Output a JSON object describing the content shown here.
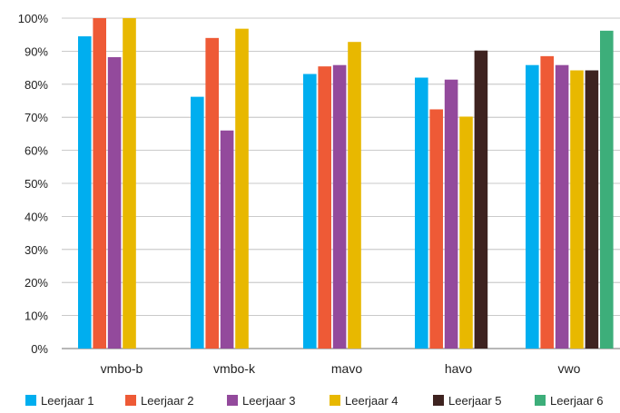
{
  "chart_data": {
    "type": "bar",
    "categories": [
      "vmbo-b",
      "vmbo-k",
      "mavo",
      "havo",
      "vwo"
    ],
    "y_tick_labels": [
      "0%",
      "10%",
      "20%",
      "30%",
      "40%",
      "50%",
      "60%",
      "70%",
      "80%",
      "90%",
      "100%"
    ],
    "ylim": [
      0,
      100
    ],
    "y_unit": "%",
    "grid": true,
    "legend_position": "bottom",
    "series": [
      {
        "name": "Leerjaar 1",
        "color": "#00AEEF",
        "values": [
          94.5,
          76.2,
          83.1,
          82.0,
          85.8
        ]
      },
      {
        "name": "Leerjaar 2",
        "color": "#EE5A36",
        "values": [
          100,
          94.0,
          85.4,
          72.4,
          88.5
        ]
      },
      {
        "name": "Leerjaar 3",
        "color": "#934A9C",
        "values": [
          88.2,
          66.0,
          85.8,
          81.4,
          85.8
        ]
      },
      {
        "name": "Leerjaar 4",
        "color": "#E8B800",
        "values": [
          100,
          96.8,
          92.8,
          70.2,
          84.2
        ]
      },
      {
        "name": "Leerjaar 5",
        "color": "#3E2320",
        "values": [
          null,
          null,
          null,
          90.2,
          84.2
        ]
      },
      {
        "name": "Leerjaar 6",
        "color": "#3DAE7A",
        "values": [
          null,
          null,
          null,
          null,
          96.2
        ]
      }
    ]
  }
}
